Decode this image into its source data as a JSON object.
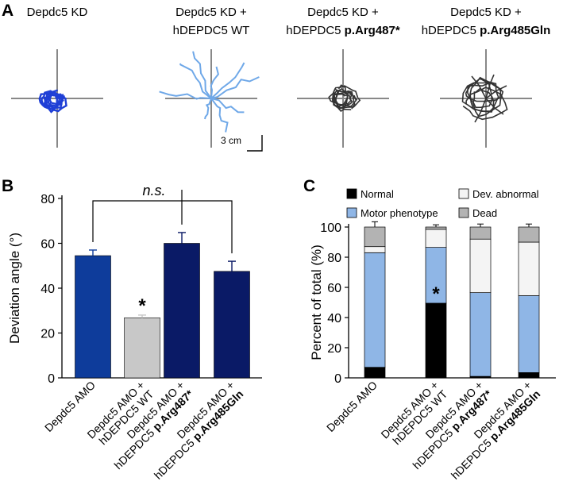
{
  "panel_a": {
    "letter": "A",
    "panels": [
      {
        "title_lines": [
          "Depdc5 KD"
        ],
        "bold_part": "",
        "trace_color": "#1f3fd6",
        "trace_type": "tight"
      },
      {
        "title_lines": [
          "Depdc5 KD +",
          "hDEPDC5 WT"
        ],
        "bold_part": "",
        "trace_color": "#6fa8e8",
        "trace_type": "spread"
      },
      {
        "title_lines": [
          "Depdc5 KD +",
          "hDEPDC5 "
        ],
        "bold_part": "p.Arg487*",
        "trace_color": "#333333",
        "trace_type": "tight"
      },
      {
        "title_lines": [
          "Depdc5 KD +",
          "hDEPDC5 "
        ],
        "bold_part": "p.Arg485Gln",
        "trace_color": "#333333",
        "trace_type": "medium"
      }
    ],
    "scale_label": "3 cm"
  },
  "colors": {
    "depdc5_amo": "#0e3c9b",
    "wt_rescue": "#c8c8c8",
    "mutant": "#0a1a66",
    "normal": "#000000",
    "motor": "#8fb6e6",
    "dev_abnormal": "#f4f4f4",
    "dead": "#b3b3b3"
  },
  "chart_data": [
    {
      "panel": "B",
      "type": "bar",
      "ylabel": "Deviation angle (°)",
      "ylim": [
        0,
        80
      ],
      "yticks": [
        0,
        20,
        40,
        60,
        80
      ],
      "categories": [
        {
          "line1": "Depdc5 AMO",
          "line2": "",
          "line2_bold": ""
        },
        {
          "line1": "Depdc5 AMO +",
          "line2": "hDEPDC5 WT",
          "line2_bold": ""
        },
        {
          "line1": "Depdc5 AMO +",
          "line2": "hDEPDC5 ",
          "line2_bold": "p.Arg487*"
        },
        {
          "line1": "Depdc5 AMO +",
          "line2": "hDEPDC5 ",
          "line2_bold": "p.Arg485Gln"
        }
      ],
      "values": [
        54.5,
        26.8,
        60.0,
        47.5
      ],
      "errors": [
        2.5,
        1.2,
        4.8,
        4.5
      ],
      "bar_color_keys": [
        "depdc5_amo",
        "wt_rescue",
        "mutant",
        "mutant"
      ],
      "significance_label": "n.s.",
      "star_label": "*",
      "star_index": 1
    },
    {
      "panel": "C",
      "type": "bar",
      "stacked": true,
      "ylabel": "Percent of total (%)",
      "ylim": [
        0,
        100
      ],
      "yticks": [
        0,
        20,
        40,
        60,
        80,
        100
      ],
      "categories": [
        {
          "line1": "Depdc5 AMO",
          "line2": "",
          "line2_bold": ""
        },
        {
          "line1": "Depdc5 AMO +",
          "line2": "hDEPDC5 WT",
          "line2_bold": ""
        },
        {
          "line1": "Depdc5 AMO +",
          "line2": "hDEPDC5 ",
          "line2_bold": "p.Arg487*"
        },
        {
          "line1": "Depdc5 AMO +",
          "line2": "hDEPDC5 ",
          "line2_bold": "p.Arg485Gln"
        }
      ],
      "series": [
        {
          "name": "Normal",
          "color_key": "normal",
          "values": [
            7,
            49.5,
            1,
            3.5
          ],
          "errors": [
            4.5,
            2.5,
            0.5,
            1
          ]
        },
        {
          "name": "Motor phenotype",
          "color_key": "motor",
          "values": [
            76,
            37,
            55.5,
            51
          ],
          "errors": [
            7,
            5,
            7,
            12
          ]
        },
        {
          "name": "Dev. abnormal",
          "color_key": "dev_abnormal",
          "values": [
            4,
            12,
            35.5,
            35.5
          ],
          "errors": [
            0,
            0,
            0,
            0
          ]
        },
        {
          "name": "Dead",
          "color_key": "dead",
          "values": [
            13,
            1.5,
            8,
            10
          ],
          "errors": [
            3.5,
            1.5,
            2,
            2
          ]
        }
      ],
      "star_label": "*",
      "star_index": 1
    }
  ]
}
